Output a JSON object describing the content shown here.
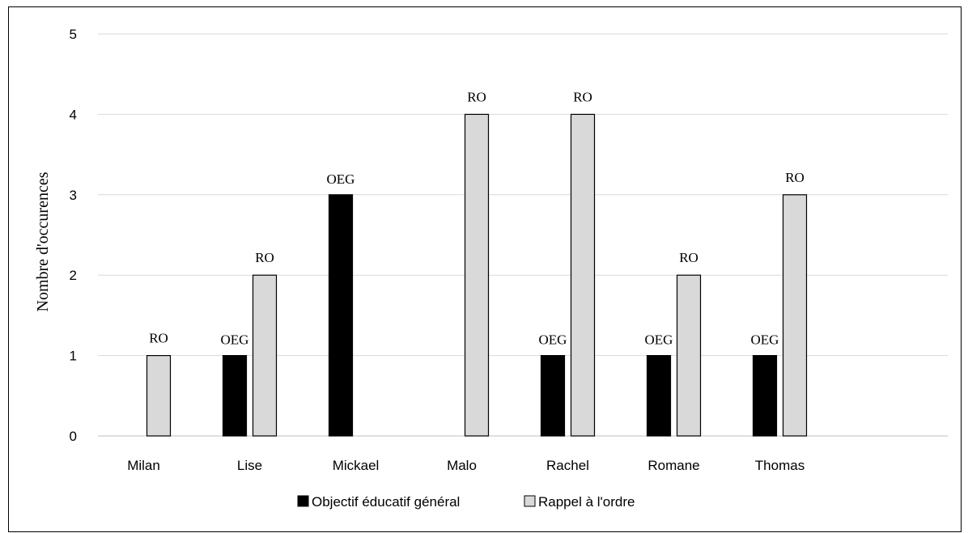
{
  "chart_data": {
    "type": "bar",
    "title": "",
    "xlabel": "",
    "ylabel": "Nombre d'occurences",
    "ylim": [
      0,
      5
    ],
    "yticks": [
      0,
      1,
      2,
      3,
      4,
      5
    ],
    "grid": true,
    "legend_position": "bottom",
    "categories": [
      "Milan",
      "Lise",
      "Mickael",
      "Malo",
      "Rachel",
      "Romane",
      "Thomas"
    ],
    "series": [
      {
        "name": "Objectif éducatif général",
        "label": "OEG",
        "color": "#000000",
        "values": [
          0,
          1,
          3,
          0,
          1,
          1,
          1
        ]
      },
      {
        "name": "Rappel à l'ordre",
        "label": "RO",
        "color": "#d9d9d9",
        "values": [
          1,
          2,
          0,
          4,
          4,
          2,
          3
        ]
      }
    ]
  }
}
